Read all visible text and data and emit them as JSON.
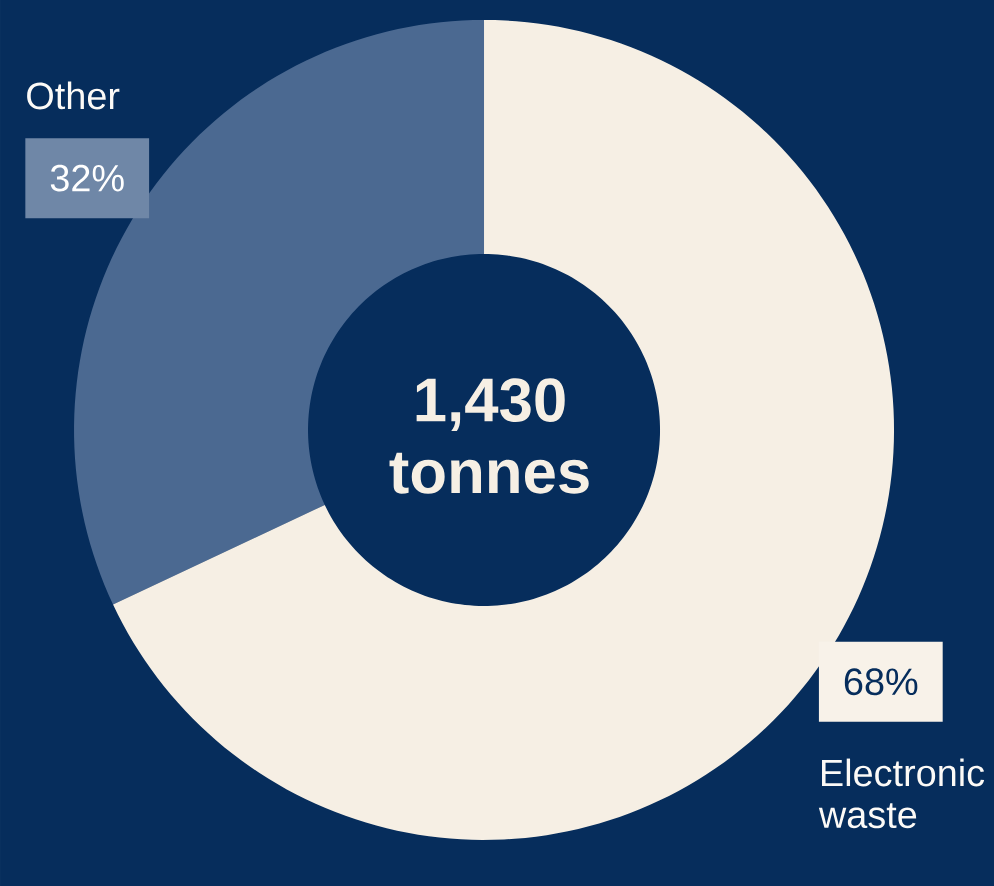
{
  "chart_data": {
    "type": "donut",
    "categories": [
      "Other",
      "Electronic waste"
    ],
    "values": [
      32,
      68
    ],
    "colors": [
      "#4b6991",
      "#f6efe4"
    ],
    "value_labels": [
      "32%",
      "68%"
    ],
    "annotations": [
      "1,430 tonnes"
    ]
  }
}
